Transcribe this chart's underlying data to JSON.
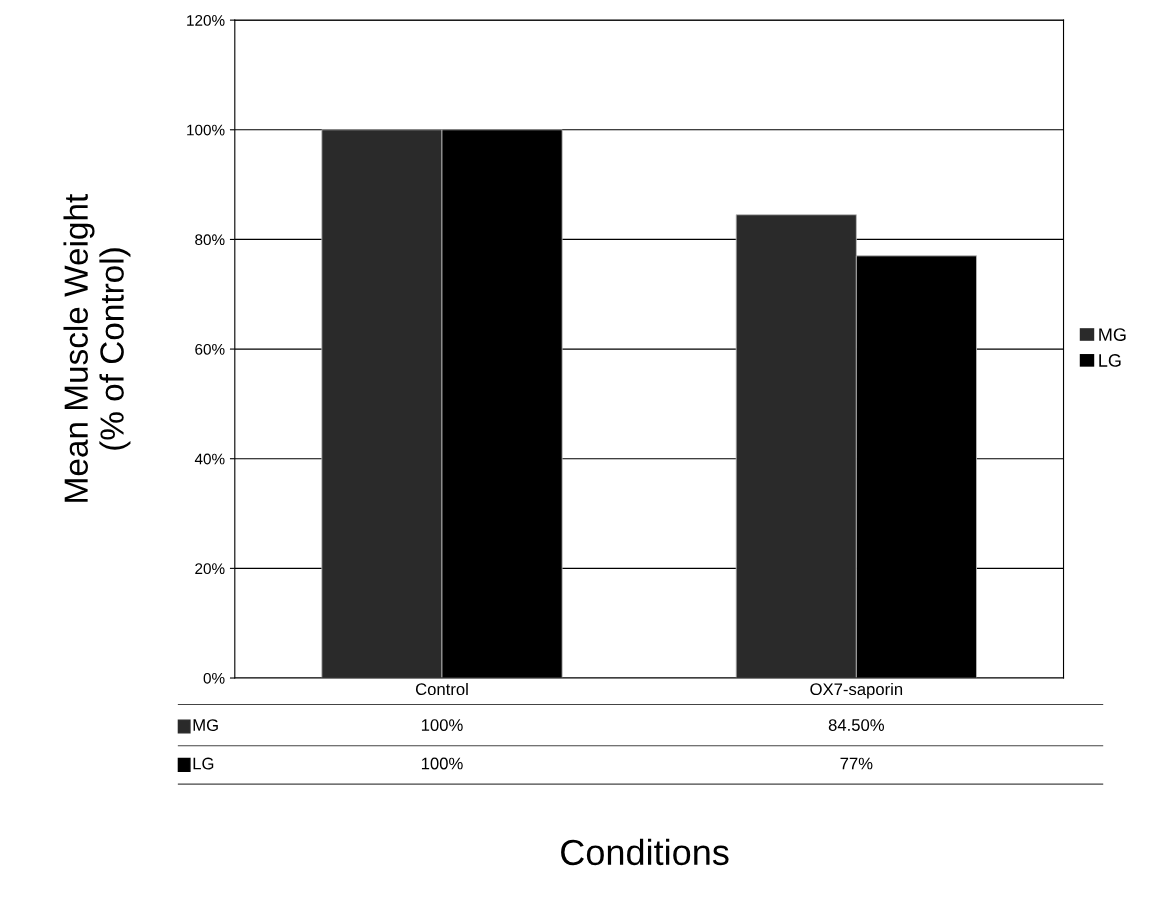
{
  "chart_data": {
    "type": "bar",
    "xlabel": "Conditions",
    "ylabel": "Mean Muscle Weight\n(% of Control)",
    "categories": [
      "Control",
      "OX7-saporin"
    ],
    "series": [
      {
        "name": "MG",
        "color": "#2a2a2a",
        "values": [
          100,
          84.5
        ],
        "value_labels": [
          "100%",
          "84.50%"
        ]
      },
      {
        "name": "LG",
        "color": "#000000",
        "values": [
          100,
          77
        ],
        "value_labels": [
          "100%",
          "77%"
        ]
      }
    ],
    "ylim": [
      0,
      120
    ],
    "yticks": [
      {
        "value": 0,
        "label": "0%"
      },
      {
        "value": 20,
        "label": "20%"
      },
      {
        "value": 40,
        "label": "40%"
      },
      {
        "value": 60,
        "label": "60%"
      },
      {
        "value": 80,
        "label": "80%"
      },
      {
        "value": 100,
        "label": "100%"
      },
      {
        "value": 120,
        "label": "120%"
      }
    ],
    "grid": "y",
    "legend": "right"
  }
}
